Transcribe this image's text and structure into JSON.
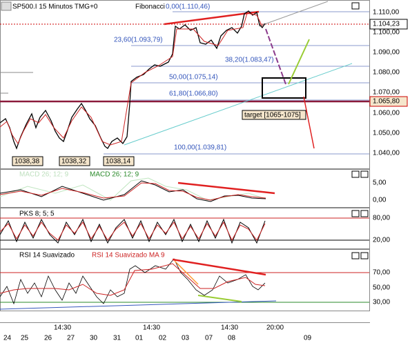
{
  "header": {
    "symbol": "SP500.I 15 Minutos TMG+0",
    "study": "Fibonacci"
  },
  "fibonacci": [
    "0,00(1.110,46)",
    "23,60(1.093,79)",
    "38,20(1.083,47)",
    "50,00(1.075,14)",
    "61,80(1.066,80)",
    "100,00(1.039,81)"
  ],
  "price_axis": [
    "1.110,00",
    "1.100,00",
    "1.090,00",
    "1.080,00",
    "1.070,00",
    "1.060,00",
    "1.050,00",
    "1.040,00"
  ],
  "current_price": "1.104,23",
  "level_price": "1.065,80",
  "lows": [
    "1038,38",
    "1038,32",
    "1038,14"
  ],
  "target": "target [1065-1075]",
  "macd": {
    "label_faded": "MACD 26; 12; 9",
    "label": "MACD 26; 12; 9",
    "axis": [
      "5,00",
      "0,00"
    ]
  },
  "pks": {
    "label": "PKS 8; 5; 5",
    "axis": [
      "80,00",
      "20,00"
    ]
  },
  "rsi": {
    "label": "RSI 14 Suavizado",
    "label_ma": "RSI 14 Suavizado MA 9",
    "axis": [
      "70,00",
      "50,00",
      "30,00"
    ]
  },
  "time_axis": {
    "times": [
      "14:30",
      "14:30",
      "14:30",
      "20:00"
    ],
    "days": [
      "24",
      "25",
      "26",
      "27",
      "30",
      "31",
      "01",
      "02",
      "03",
      "07",
      "08",
      "09"
    ]
  }
}
